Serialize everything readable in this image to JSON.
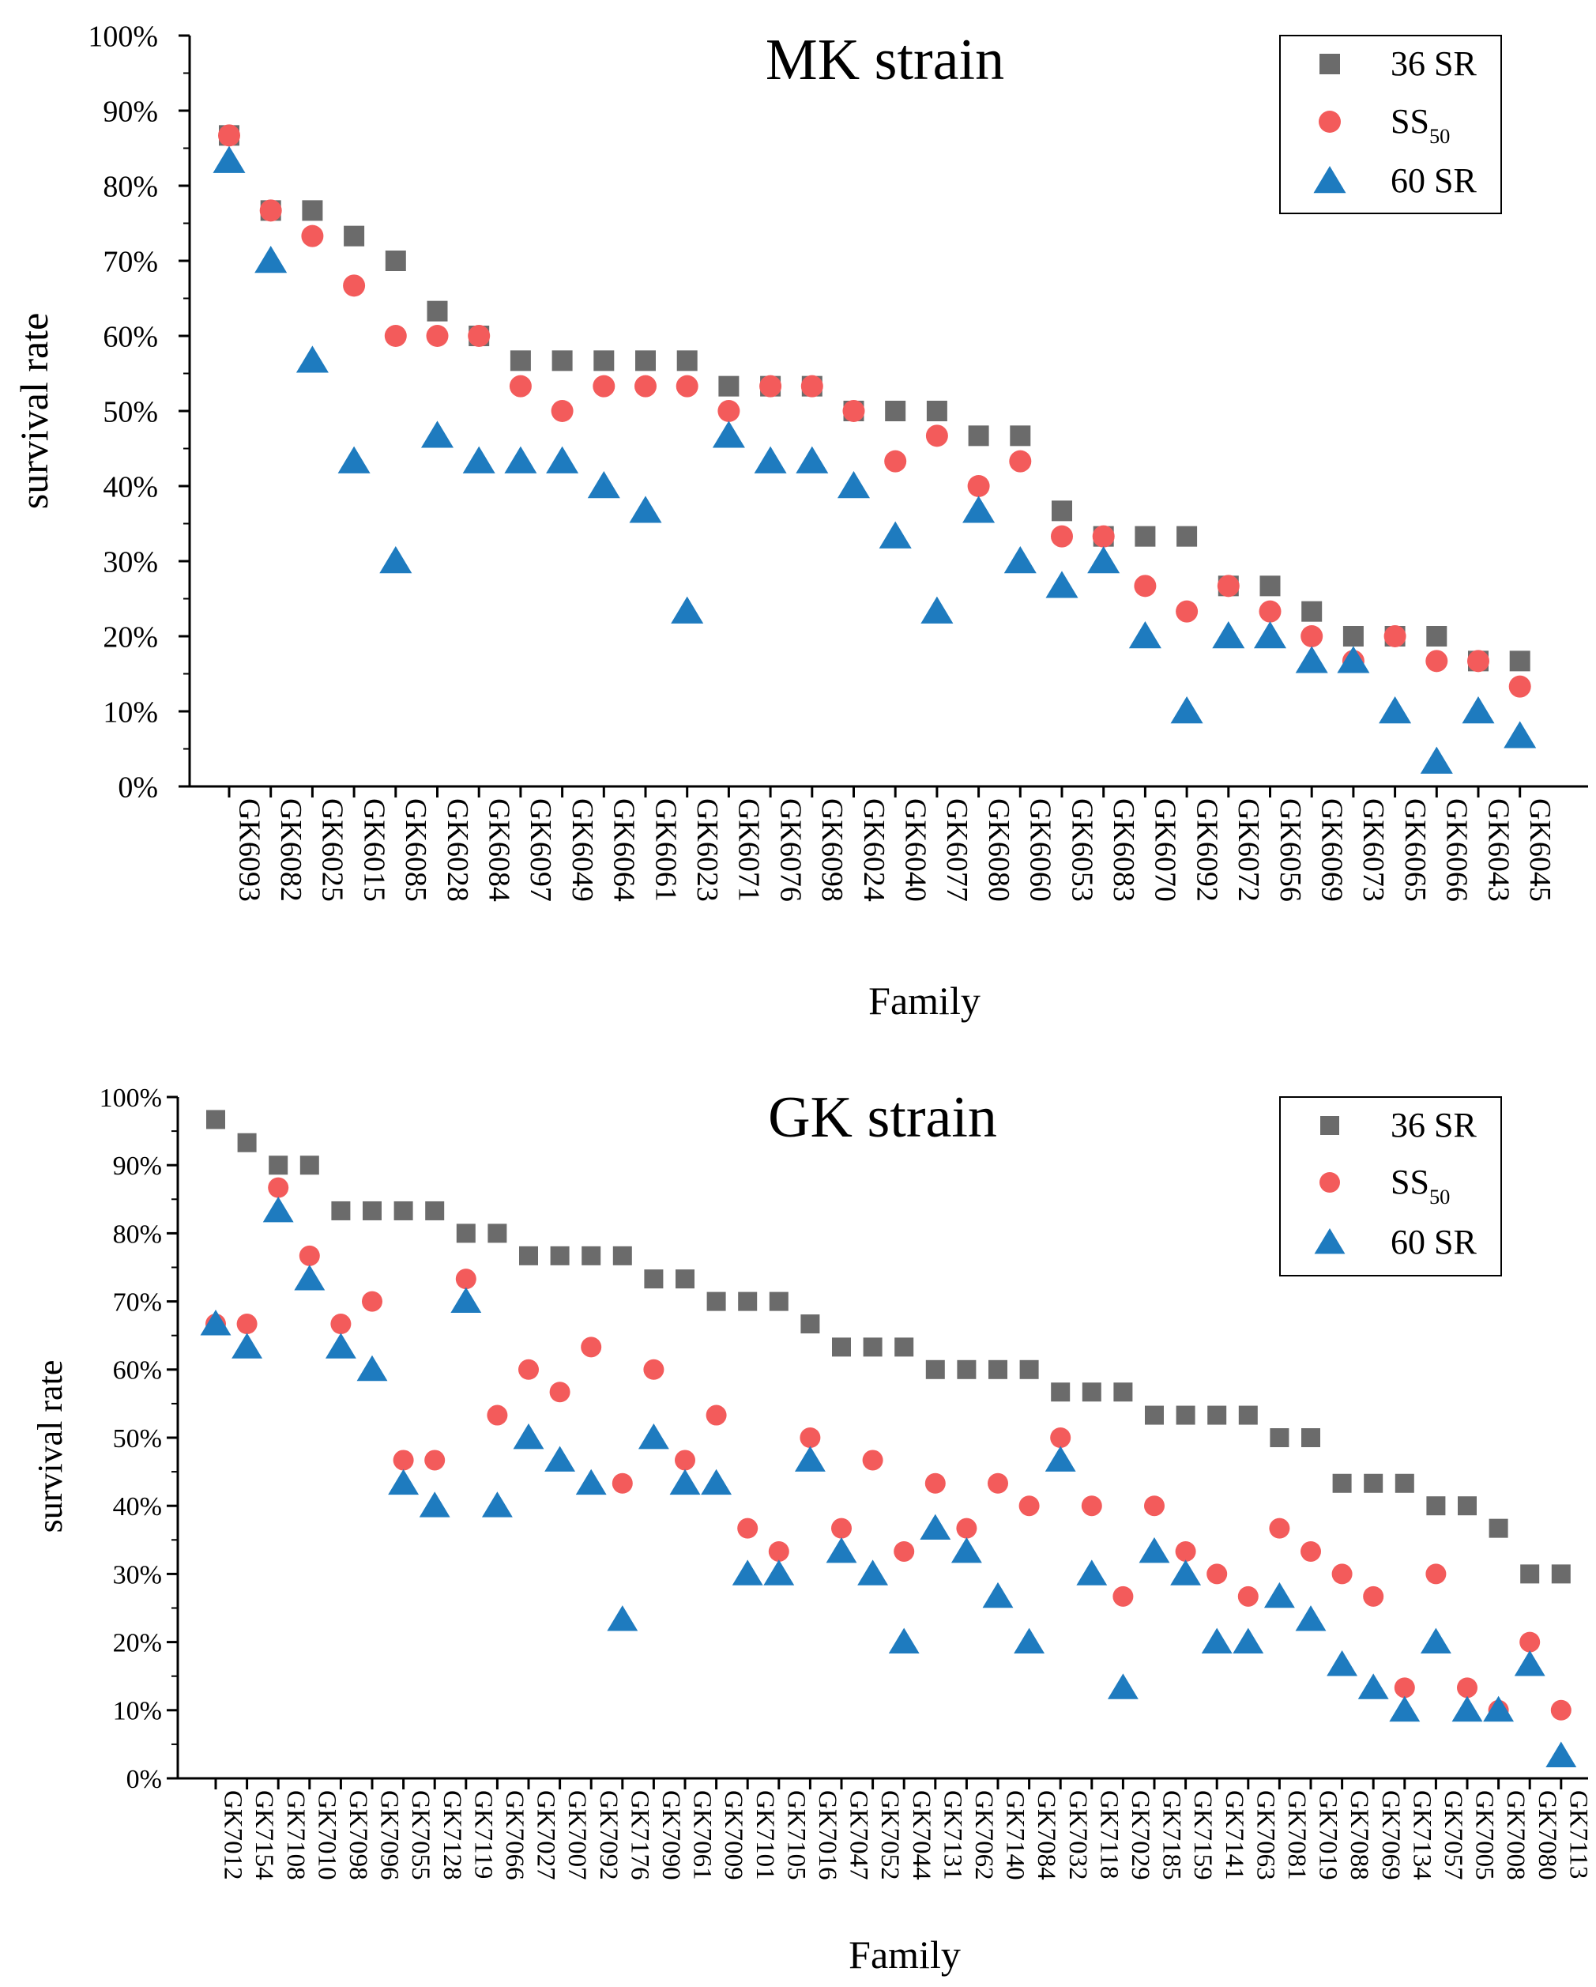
{
  "colors": {
    "square": "#6b6b6b",
    "circle": "#f35b5b",
    "triangle": "#1e7bbf"
  },
  "chart_data": [
    {
      "type": "scatter",
      "title": "MK strain",
      "xlabel": "Family",
      "ylabel": "survival rate",
      "ylim": [
        0,
        100
      ],
      "y_ticks": [
        "0%",
        "10%",
        "20%",
        "30%",
        "40%",
        "50%",
        "60%",
        "70%",
        "80%",
        "90%",
        "100%"
      ],
      "legend_position": "top-right",
      "categories": [
        "GK6093",
        "GK6082",
        "GK6025",
        "GK6015",
        "GK6085",
        "GK6028",
        "GK6084",
        "GK6097",
        "GK6049",
        "GK6064",
        "GK6061",
        "GK6023",
        "GK6071",
        "GK6076",
        "GK6098",
        "GK6024",
        "GK6040",
        "GK6077",
        "GK6080",
        "GK6060",
        "GK6053",
        "GK6083",
        "GK6070",
        "GK6092",
        "GK6072",
        "GK6056",
        "GK6069",
        "GK6073",
        "GK6065",
        "GK6066",
        "GK6043",
        "GK6045"
      ],
      "series": [
        {
          "name": "36 SR",
          "marker": "square",
          "values": [
            86.7,
            76.7,
            76.7,
            73.3,
            70,
            63.3,
            60,
            56.7,
            56.7,
            56.7,
            56.7,
            56.7,
            53.3,
            53.3,
            53.3,
            50,
            50,
            50,
            46.7,
            46.7,
            36.7,
            33.3,
            33.3,
            33.3,
            26.7,
            26.7,
            23.3,
            20,
            20,
            20,
            16.7,
            16.7
          ]
        },
        {
          "name": "SS",
          "subscript": "50",
          "marker": "circle",
          "values": [
            86.7,
            76.7,
            73.3,
            66.7,
            60,
            60,
            60,
            53.3,
            50,
            53.3,
            53.3,
            53.3,
            50,
            53.3,
            53.3,
            50,
            43.3,
            46.7,
            40,
            43.3,
            33.3,
            33.3,
            26.7,
            23.3,
            26.7,
            23.3,
            20,
            16.7,
            20,
            16.7,
            16.7,
            13.3
          ]
        },
        {
          "name": "60 SR",
          "marker": "triangle",
          "values": [
            83.3,
            70,
            56.7,
            43.3,
            30,
            46.7,
            43.3,
            43.3,
            43.3,
            40,
            36.7,
            23.3,
            46.7,
            43.3,
            43.3,
            40,
            33.3,
            23.3,
            36.7,
            30,
            26.7,
            30,
            20,
            10,
            20,
            20,
            16.7,
            16.7,
            10,
            3.3,
            10,
            6.7
          ]
        }
      ]
    },
    {
      "type": "scatter",
      "title": "GK strain",
      "xlabel": "Family",
      "ylabel": "survival rate",
      "ylim": [
        0,
        100
      ],
      "y_ticks": [
        "0%",
        "10%",
        "20%",
        "30%",
        "40%",
        "50%",
        "60%",
        "70%",
        "80%",
        "90%",
        "100%"
      ],
      "legend_position": "top-right",
      "categories": [
        "GK7012",
        "GK7154",
        "GK7108",
        "GK7010",
        "GK7098",
        "GK7096",
        "GK7055",
        "GK7128",
        "GK7119",
        "GK7066",
        "GK7027",
        "GK7007",
        "GK7092",
        "GK7176",
        "GK7090",
        "GK7061",
        "GK7009",
        "GK7101",
        "GK7105",
        "GK7016",
        "GK7047",
        "GK7052",
        "GK7044",
        "GK7131",
        "GK7062",
        "GK7140",
        "GK7084",
        "GK7032",
        "GK7118",
        "GK7029",
        "GK7185",
        "GK7159",
        "GK7141",
        "GK7063",
        "GK7081",
        "GK7019",
        "GK7088",
        "GK7069",
        "GK7134",
        "GK7057",
        "GK7005",
        "GK7008",
        "GK7080",
        "GK7113"
      ],
      "series": [
        {
          "name": "36 SR",
          "marker": "square",
          "values": [
            96.7,
            93.3,
            90,
            90,
            83.3,
            83.3,
            83.3,
            83.3,
            80,
            80,
            76.7,
            76.7,
            76.7,
            76.7,
            73.3,
            73.3,
            70,
            70,
            70,
            66.7,
            63.3,
            63.3,
            63.3,
            60,
            60,
            60,
            60,
            56.7,
            56.7,
            56.7,
            53.3,
            53.3,
            53.3,
            53.3,
            50,
            50,
            43.3,
            43.3,
            43.3,
            40,
            40,
            36.7,
            30,
            30
          ]
        },
        {
          "name": "SS",
          "subscript": "50",
          "marker": "circle",
          "values": [
            66.7,
            66.7,
            86.7,
            76.7,
            66.7,
            70,
            46.7,
            46.7,
            73.3,
            53.3,
            60,
            56.7,
            63.3,
            43.3,
            60,
            46.7,
            53.3,
            36.7,
            33.3,
            50,
            36.7,
            46.7,
            33.3,
            43.3,
            36.7,
            43.3,
            40,
            50,
            40,
            26.7,
            40,
            33.3,
            30,
            26.7,
            36.7,
            33.3,
            30,
            26.7,
            13.3,
            30,
            13.3,
            10,
            20,
            10
          ]
        },
        {
          "name": "60 SR",
          "marker": "triangle",
          "values": [
            66.7,
            63.3,
            83.3,
            73.3,
            63.3,
            60,
            43.3,
            40,
            70,
            40,
            50,
            46.7,
            43.3,
            23.3,
            50,
            43.3,
            43.3,
            30,
            30,
            46.7,
            33.3,
            30,
            20,
            36.7,
            33.3,
            26.7,
            20,
            46.7,
            30,
            13.3,
            33.3,
            30,
            20,
            20,
            26.7,
            23.3,
            16.7,
            13.3,
            10,
            20,
            10,
            10,
            16.7,
            3.3
          ]
        }
      ]
    }
  ]
}
